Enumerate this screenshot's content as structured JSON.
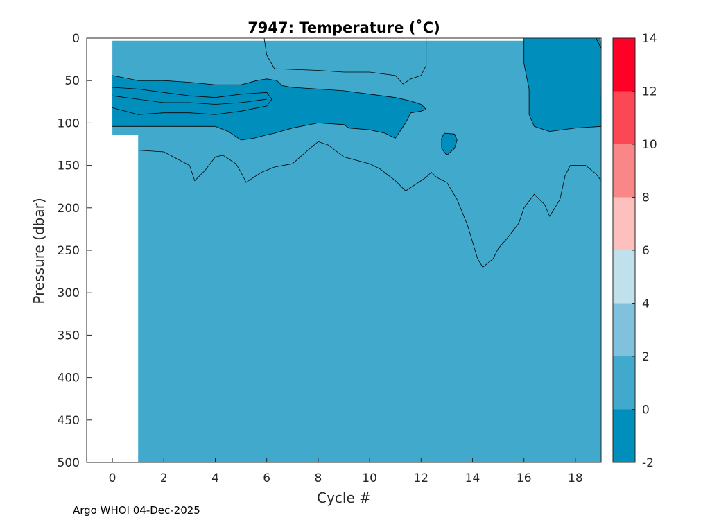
{
  "chart_data": {
    "type": "contour",
    "title": "7947:  Temperature (˚C)",
    "xlabel": "Cycle #",
    "ylabel": "Pressure (dbar)",
    "xlim": [
      -1,
      19
    ],
    "ylim": [
      0,
      500
    ],
    "y_reversed": true,
    "xticks": [
      0,
      2,
      4,
      6,
      8,
      10,
      12,
      14,
      16,
      18
    ],
    "yticks": [
      0,
      50,
      100,
      150,
      200,
      250,
      300,
      350,
      400,
      450,
      500
    ],
    "background_color": "#41a9cc",
    "colorbar": {
      "levels": [
        -2,
        0,
        2,
        4,
        6,
        8,
        10,
        12,
        14
      ],
      "colors": [
        "#008fbd",
        "#41a9cc",
        "#80c2de",
        "#c0e0eb",
        "#fdc0bc",
        "#fa8787",
        "#fc4755",
        "#ff0027"
      ]
    },
    "regions": [
      {
        "name": "colder-layer-upper-left",
        "value_range": [
          -2,
          0
        ],
        "points": [
          [
            0,
            44
          ],
          [
            0.5,
            48
          ],
          [
            1,
            50
          ],
          [
            2,
            50
          ],
          [
            3,
            52
          ],
          [
            4,
            55
          ],
          [
            5,
            55
          ],
          [
            5.6,
            50
          ],
          [
            6,
            48
          ],
          [
            6.4,
            50
          ],
          [
            6.6,
            56
          ],
          [
            7,
            58
          ],
          [
            8,
            60
          ],
          [
            9,
            62
          ],
          [
            10,
            66
          ],
          [
            11,
            70
          ],
          [
            11.6,
            74
          ],
          [
            12,
            78
          ],
          [
            12.2,
            84
          ],
          [
            12,
            86
          ],
          [
            11.6,
            88
          ],
          [
            11.4,
            100
          ],
          [
            11,
            118
          ],
          [
            10.6,
            112
          ],
          [
            10,
            108
          ],
          [
            9.2,
            106
          ],
          [
            9,
            102
          ],
          [
            8,
            100
          ],
          [
            7,
            106
          ],
          [
            6.3,
            112
          ],
          [
            6,
            114
          ],
          [
            5.5,
            118
          ],
          [
            5,
            120
          ],
          [
            4.5,
            110
          ],
          [
            4,
            104
          ],
          [
            3,
            104
          ],
          [
            2,
            104
          ],
          [
            1,
            104
          ],
          [
            0,
            104
          ]
        ]
      },
      {
        "name": "colder-patch-cycle-13",
        "value_range": [
          -2,
          0
        ],
        "points": [
          [
            12.9,
            112
          ],
          [
            13.3,
            113
          ],
          [
            13.4,
            120
          ],
          [
            13.3,
            130
          ],
          [
            13,
            138
          ],
          [
            12.8,
            130
          ],
          [
            12.8,
            118
          ]
        ]
      },
      {
        "name": "colder-region-right",
        "value_range": [
          -2,
          0
        ],
        "points": [
          [
            16,
            0
          ],
          [
            18.95,
            0
          ],
          [
            19,
            104
          ],
          [
            18,
            106
          ],
          [
            17,
            110
          ],
          [
            16.4,
            104
          ],
          [
            16.2,
            90
          ],
          [
            16.2,
            60
          ],
          [
            16,
            30
          ]
        ]
      }
    ],
    "contour_lines": [
      {
        "name": "contour-upper-left-band-top",
        "points": [
          [
            0,
            44
          ],
          [
            1,
            50
          ],
          [
            2,
            50
          ],
          [
            3,
            52
          ],
          [
            4,
            55
          ],
          [
            5,
            55
          ],
          [
            5.6,
            50
          ],
          [
            6,
            48
          ],
          [
            6.4,
            50
          ],
          [
            6.6,
            56
          ],
          [
            7,
            58
          ],
          [
            8,
            60
          ],
          [
            9,
            62
          ],
          [
            10,
            66
          ],
          [
            11,
            70
          ],
          [
            11.6,
            74
          ],
          [
            12,
            78
          ],
          [
            12.2,
            84
          ]
        ]
      },
      {
        "name": "contour-upper-left-band-mid1",
        "points": [
          [
            0,
            58
          ],
          [
            1,
            60
          ],
          [
            2,
            64
          ],
          [
            3,
            68
          ],
          [
            4,
            70
          ],
          [
            5,
            66
          ],
          [
            6,
            64
          ],
          [
            6.2,
            72
          ],
          [
            6,
            80
          ],
          [
            5,
            86
          ],
          [
            4,
            90
          ],
          [
            3,
            88
          ],
          [
            2,
            88
          ],
          [
            1,
            90
          ],
          [
            0,
            82
          ]
        ]
      },
      {
        "name": "contour-upper-left-band-mid2",
        "points": [
          [
            0,
            68
          ],
          [
            1,
            72
          ],
          [
            2,
            76
          ],
          [
            3,
            76
          ],
          [
            4,
            78
          ],
          [
            5,
            76
          ],
          [
            6,
            72
          ]
        ]
      },
      {
        "name": "contour-upper-left-band-bottom",
        "points": [
          [
            0,
            104
          ],
          [
            1,
            104
          ],
          [
            2,
            104
          ],
          [
            3,
            104
          ],
          [
            4,
            104
          ],
          [
            4.5,
            110
          ],
          [
            5,
            120
          ],
          [
            5.5,
            118
          ],
          [
            6,
            114
          ],
          [
            6.3,
            112
          ],
          [
            7,
            106
          ],
          [
            8,
            100
          ],
          [
            9,
            102
          ],
          [
            9.2,
            106
          ],
          [
            10,
            108
          ],
          [
            10.6,
            112
          ],
          [
            11,
            118
          ],
          [
            11.4,
            100
          ],
          [
            11.6,
            88
          ],
          [
            12,
            86
          ],
          [
            12.2,
            84
          ]
        ]
      },
      {
        "name": "contour-cycle-13-patch",
        "points": [
          [
            12.9,
            112
          ],
          [
            13.3,
            113
          ],
          [
            13.4,
            120
          ],
          [
            13.3,
            130
          ],
          [
            13,
            138
          ],
          [
            12.8,
            130
          ],
          [
            12.8,
            118
          ],
          [
            12.9,
            112
          ]
        ]
      },
      {
        "name": "contour-upper-mid",
        "points": [
          [
            5.9,
            0
          ],
          [
            6,
            20
          ],
          [
            6.3,
            36
          ],
          [
            8,
            38
          ],
          [
            9,
            40
          ],
          [
            10,
            40
          ],
          [
            11,
            44
          ],
          [
            11.3,
            54
          ],
          [
            11.6,
            48
          ],
          [
            12,
            44
          ],
          [
            12.2,
            32
          ],
          [
            12.2,
            0
          ]
        ]
      },
      {
        "name": "contour-lower-left",
        "points": [
          [
            1,
            132
          ],
          [
            2,
            134
          ],
          [
            3,
            150
          ],
          [
            3.2,
            168
          ],
          [
            3.6,
            156
          ],
          [
            4,
            140
          ],
          [
            4.3,
            138
          ],
          [
            4.5,
            142
          ],
          [
            4.8,
            148
          ],
          [
            5,
            158
          ],
          [
            5.2,
            170
          ],
          [
            5.5,
            164
          ],
          [
            5.8,
            158
          ],
          [
            6.3,
            152
          ],
          [
            7,
            148
          ],
          [
            7.6,
            132
          ],
          [
            8,
            122
          ],
          [
            8.4,
            126
          ],
          [
            9,
            140
          ],
          [
            10,
            148
          ],
          [
            10.4,
            154
          ],
          [
            11,
            168
          ],
          [
            11.4,
            180
          ],
          [
            11.8,
            172
          ],
          [
            12.2,
            164
          ],
          [
            12.4,
            158
          ],
          [
            12.6,
            164
          ],
          [
            13,
            170
          ],
          [
            13.4,
            190
          ],
          [
            13.8,
            220
          ],
          [
            14,
            240
          ],
          [
            14.2,
            260
          ],
          [
            14.4,
            270
          ],
          [
            14.8,
            260
          ],
          [
            15,
            248
          ],
          [
            15.4,
            234
          ],
          [
            15.8,
            218
          ],
          [
            16,
            200
          ],
          [
            16.4,
            184
          ],
          [
            16.8,
            196
          ],
          [
            17,
            210
          ],
          [
            17.4,
            190
          ],
          [
            17.6,
            162
          ],
          [
            17.8,
            150
          ],
          [
            18.4,
            150
          ],
          [
            18.8,
            160
          ],
          [
            19,
            168
          ]
        ]
      },
      {
        "name": "contour-right-colder",
        "points": [
          [
            16,
            0
          ],
          [
            16,
            30
          ],
          [
            16.2,
            60
          ],
          [
            16.2,
            90
          ],
          [
            16.4,
            104
          ],
          [
            17,
            110
          ],
          [
            18,
            106
          ],
          [
            19,
            104
          ]
        ]
      },
      {
        "name": "contour-top-right-edge",
        "points": [
          [
            18.8,
            0
          ],
          [
            19,
            12
          ]
        ]
      }
    ]
  },
  "footer": {
    "credit": "Argo WHOI 04-Dec-2025"
  }
}
